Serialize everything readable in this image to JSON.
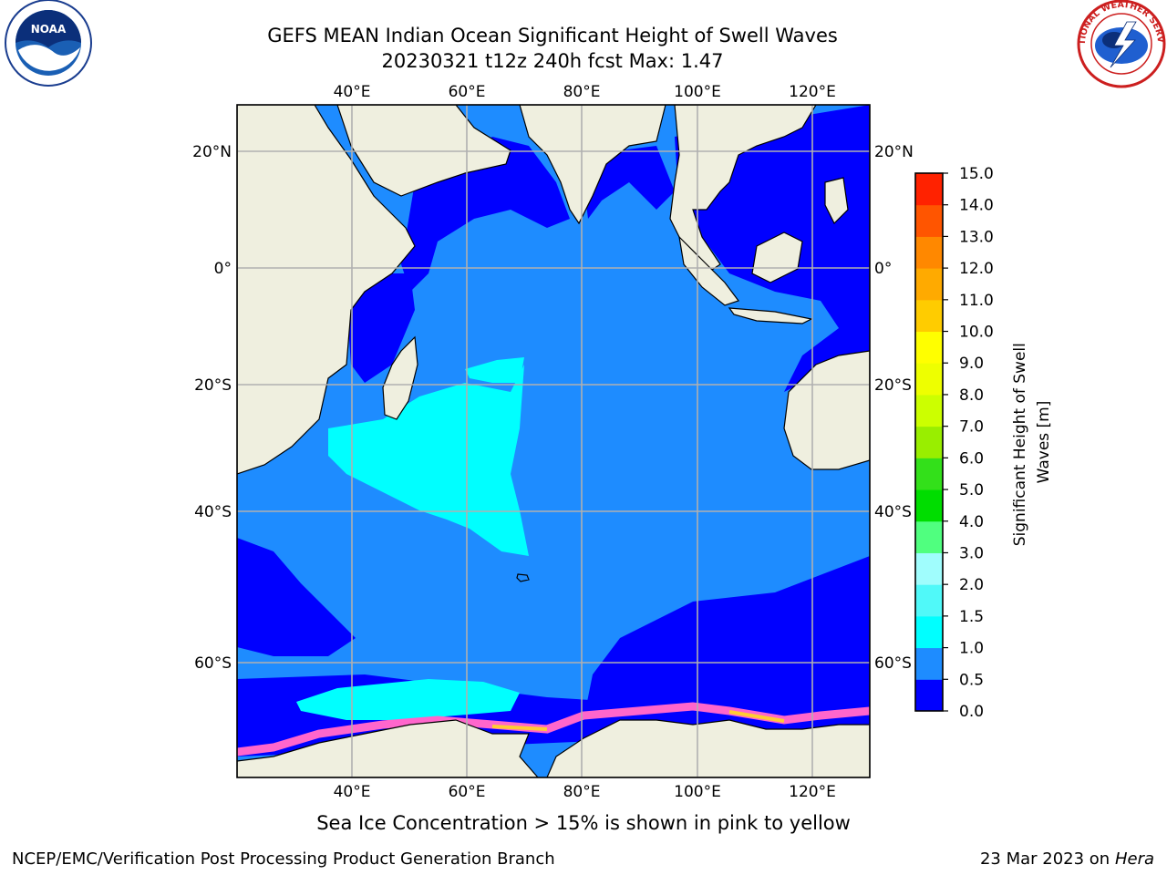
{
  "title": {
    "line1": "GEFS MEAN Indian Ocean Significant Height of Swell Waves",
    "line2": "20230321 t12z 240h fcst   Max: 1.47"
  },
  "map": {
    "lon_ticks": [
      "40°E",
      "60°E",
      "80°E",
      "100°E",
      "120°E"
    ],
    "lat_ticks": [
      "20°N",
      "0°",
      "20°S",
      "40°S",
      "60°S"
    ],
    "lon_range": [
      20,
      130
    ],
    "lat_range": [
      -75,
      27
    ],
    "colors": {
      "land": "#efefdf",
      "ocean_0_0_5": "#0000ff",
      "ocean_0_5_1_0": "#1e8cff",
      "ocean_1_0_1_5": "#00ffff",
      "ice": "#ff66cc",
      "gridline": "#b0b0b0"
    }
  },
  "colorbar": {
    "label": "Significant Height of Swell Waves [m]",
    "ticks": [
      "0.0",
      "0.5",
      "1.0",
      "1.5",
      "2.0",
      "3.0",
      "4.0",
      "5.0",
      "6.0",
      "7.0",
      "8.0",
      "9.0",
      "10.0",
      "11.0",
      "12.0",
      "13.0",
      "14.0",
      "15.0"
    ],
    "colors": [
      "#0000ff",
      "#1e8cff",
      "#00ffff",
      "#50f9f9",
      "#a0fdfd",
      "#50ff7f",
      "#00dd00",
      "#33e01a",
      "#99ee00",
      "#ccff00",
      "#eeff00",
      "#ffff00",
      "#ffcc00",
      "#ffaa00",
      "#ff8800",
      "#ff5500",
      "#ff2200",
      "#ff0000"
    ]
  },
  "note": "Sea Ice Concentration > 15% is shown in pink to yellow",
  "footer": {
    "left": "NCEP/EMC/Verification Post Processing Product Generation Branch",
    "right_date": "23 Mar 2023 on",
    "right_host": "Hera"
  },
  "logos": {
    "left": "noara-logo",
    "left_text": "NOAA",
    "right": "nws-logo",
    "right_text": "NATIONAL WEATHER SERVICE"
  }
}
